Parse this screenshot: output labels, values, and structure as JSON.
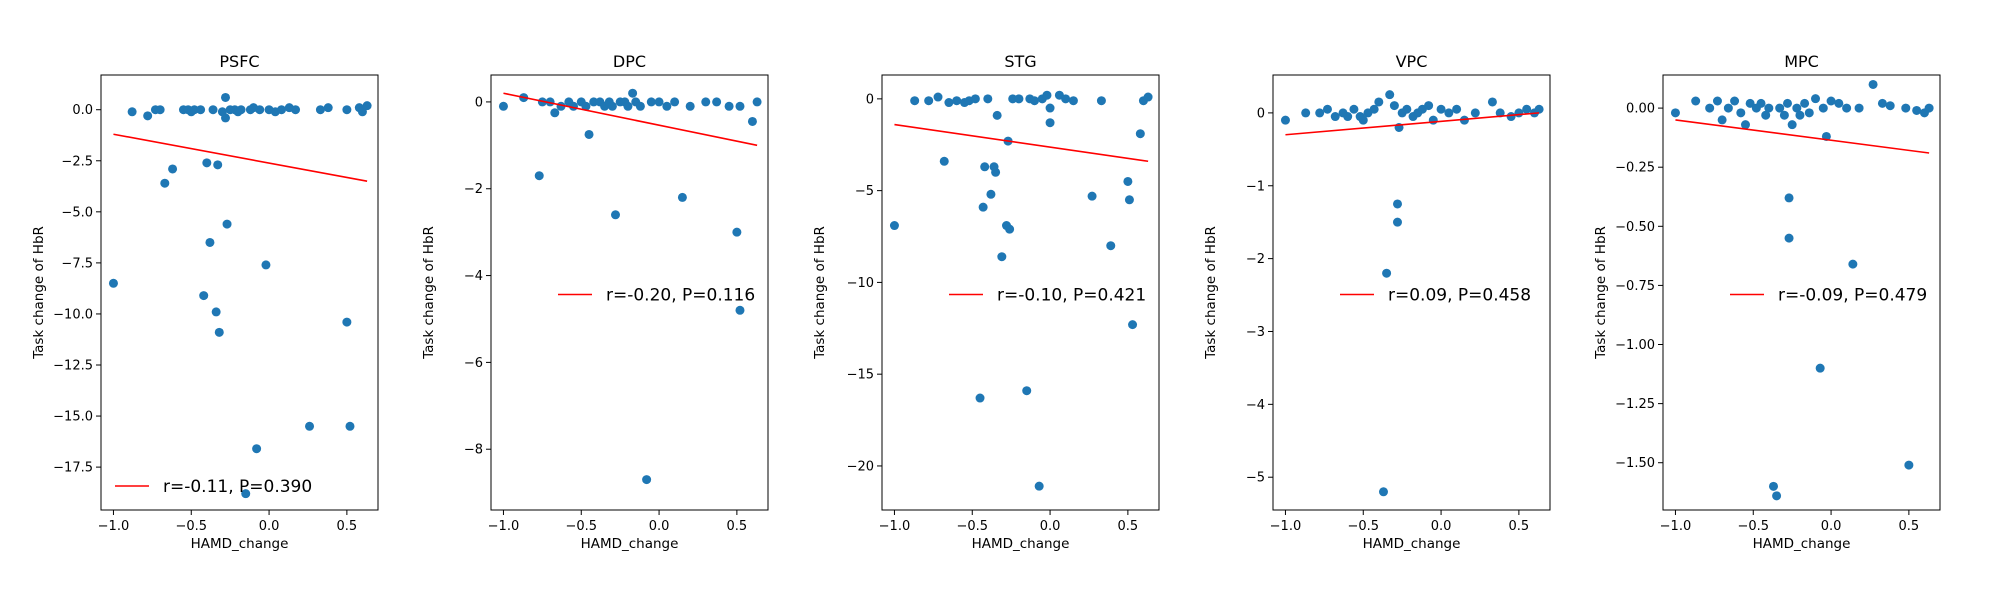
{
  "chart_data": [
    {
      "type": "scatter",
      "title": "PSFC",
      "xlabel": "HAMD_change",
      "ylabel": "Task change of HbR",
      "xlim": [
        -1.08,
        0.7
      ],
      "ylim": [
        -19.6,
        1.7
      ],
      "xticks": [
        {
          "v": -1.0,
          "label": "−1.0"
        },
        {
          "v": -0.5,
          "label": "−0.5"
        },
        {
          "v": 0.0,
          "label": "0.0"
        },
        {
          "v": 0.5,
          "label": "0.5"
        }
      ],
      "yticks": [
        {
          "v": 0.0,
          "label": "0.0"
        },
        {
          "v": -2.5,
          "label": "−2.5"
        },
        {
          "v": -5.0,
          "label": "−5.0"
        },
        {
          "v": -7.5,
          "label": "−7.5"
        },
        {
          "v": -10.0,
          "label": "−10.0"
        },
        {
          "v": -12.5,
          "label": "−12.5"
        },
        {
          "v": -15.0,
          "label": "−15.0"
        },
        {
          "v": -17.5,
          "label": "−17.5"
        }
      ],
      "legend": {
        "label": "r=-0.11, P=0.390",
        "position": "lower left",
        "color": "#ff0000"
      },
      "grid": false,
      "marker_color": "#1f77b4",
      "fit": {
        "x": [
          -1.0,
          0.63
        ],
        "y": [
          -1.2,
          -3.5
        ]
      },
      "points": [
        {
          "x": -1.0,
          "y": -8.5
        },
        {
          "x": -0.88,
          "y": -0.1
        },
        {
          "x": -0.78,
          "y": -0.3
        },
        {
          "x": -0.73,
          "y": 0.0
        },
        {
          "x": -0.7,
          "y": 0.0
        },
        {
          "x": -0.67,
          "y": -3.6
        },
        {
          "x": -0.62,
          "y": -2.9
        },
        {
          "x": -0.55,
          "y": 0.0
        },
        {
          "x": -0.52,
          "y": 0.0
        },
        {
          "x": -0.5,
          "y": -0.1
        },
        {
          "x": -0.48,
          "y": 0.0
        },
        {
          "x": -0.44,
          "y": 0.0
        },
        {
          "x": -0.42,
          "y": -9.1
        },
        {
          "x": -0.4,
          "y": -2.6
        },
        {
          "x": -0.38,
          "y": -6.5
        },
        {
          "x": -0.36,
          "y": 0.0
        },
        {
          "x": -0.34,
          "y": -9.9
        },
        {
          "x": -0.33,
          "y": -2.7
        },
        {
          "x": -0.32,
          "y": -10.9
        },
        {
          "x": -0.3,
          "y": -0.1
        },
        {
          "x": -0.28,
          "y": 0.6
        },
        {
          "x": -0.27,
          "y": -5.6
        },
        {
          "x": -0.25,
          "y": 0.0
        },
        {
          "x": -0.22,
          "y": 0.0
        },
        {
          "x": -0.2,
          "y": -0.1
        },
        {
          "x": -0.18,
          "y": 0.0
        },
        {
          "x": -0.15,
          "y": -18.8
        },
        {
          "x": -0.12,
          "y": 0.0
        },
        {
          "x": -0.1,
          "y": 0.1
        },
        {
          "x": -0.08,
          "y": -16.6
        },
        {
          "x": -0.06,
          "y": 0.0
        },
        {
          "x": -0.02,
          "y": -7.6
        },
        {
          "x": 0.0,
          "y": 0.0
        },
        {
          "x": 0.04,
          "y": -0.1
        },
        {
          "x": 0.08,
          "y": 0.0
        },
        {
          "x": 0.13,
          "y": 0.1
        },
        {
          "x": 0.17,
          "y": 0.0
        },
        {
          "x": 0.26,
          "y": -15.5
        },
        {
          "x": 0.33,
          "y": 0.0
        },
        {
          "x": 0.38,
          "y": 0.1
        },
        {
          "x": 0.5,
          "y": -10.4
        },
        {
          "x": 0.52,
          "y": -15.5
        },
        {
          "x": 0.5,
          "y": 0.0
        },
        {
          "x": 0.58,
          "y": 0.1
        },
        {
          "x": 0.6,
          "y": -0.1
        },
        {
          "x": 0.63,
          "y": 0.2
        },
        {
          "x": -0.28,
          "y": -0.4
        }
      ]
    },
    {
      "type": "scatter",
      "title": "DPC",
      "xlabel": "HAMD_change",
      "ylabel": "Task change of HbR",
      "xlim": [
        -1.08,
        0.7
      ],
      "ylim": [
        -9.4,
        0.62
      ],
      "xticks": [
        {
          "v": -1.0,
          "label": "−1.0"
        },
        {
          "v": -0.5,
          "label": "−0.5"
        },
        {
          "v": 0.0,
          "label": "0.0"
        },
        {
          "v": 0.5,
          "label": "0.5"
        }
      ],
      "yticks": [
        {
          "v": 0,
          "label": "0"
        },
        {
          "v": -2,
          "label": "−2"
        },
        {
          "v": -4,
          "label": "−4"
        },
        {
          "v": -6,
          "label": "−6"
        },
        {
          "v": -8,
          "label": "−8"
        }
      ],
      "legend": {
        "label": "r=-0.20, P=0.116",
        "position": "center right",
        "color": "#ff0000"
      },
      "grid": false,
      "marker_color": "#1f77b4",
      "fit": {
        "x": [
          -1.0,
          0.63
        ],
        "y": [
          0.2,
          -1.0
        ]
      },
      "points": [
        {
          "x": -1.0,
          "y": -0.1
        },
        {
          "x": -0.87,
          "y": 0.1
        },
        {
          "x": -0.77,
          "y": -1.7
        },
        {
          "x": -0.75,
          "y": 0.0
        },
        {
          "x": -0.7,
          "y": 0.0
        },
        {
          "x": -0.67,
          "y": -0.25
        },
        {
          "x": -0.63,
          "y": -0.1
        },
        {
          "x": -0.58,
          "y": 0.0
        },
        {
          "x": -0.55,
          "y": -0.1
        },
        {
          "x": -0.5,
          "y": 0.0
        },
        {
          "x": -0.47,
          "y": -0.1
        },
        {
          "x": -0.45,
          "y": -0.75
        },
        {
          "x": -0.42,
          "y": 0.0
        },
        {
          "x": -0.38,
          "y": 0.0
        },
        {
          "x": -0.35,
          "y": -0.1
        },
        {
          "x": -0.32,
          "y": 0.0
        },
        {
          "x": -0.3,
          "y": -0.1
        },
        {
          "x": -0.28,
          "y": -2.6
        },
        {
          "x": -0.25,
          "y": 0.0
        },
        {
          "x": -0.22,
          "y": 0.0
        },
        {
          "x": -0.2,
          "y": -0.1
        },
        {
          "x": -0.17,
          "y": 0.2
        },
        {
          "x": -0.15,
          "y": 0.0
        },
        {
          "x": -0.12,
          "y": -0.1
        },
        {
          "x": -0.08,
          "y": -8.7
        },
        {
          "x": -0.05,
          "y": 0.0
        },
        {
          "x": 0.0,
          "y": 0.0
        },
        {
          "x": 0.05,
          "y": -0.1
        },
        {
          "x": 0.1,
          "y": 0.0
        },
        {
          "x": 0.15,
          "y": -2.2
        },
        {
          "x": 0.2,
          "y": -0.1
        },
        {
          "x": 0.3,
          "y": 0.0
        },
        {
          "x": 0.37,
          "y": 0.0
        },
        {
          "x": 0.45,
          "y": -0.1
        },
        {
          "x": 0.5,
          "y": -3.0
        },
        {
          "x": 0.52,
          "y": -4.8
        },
        {
          "x": 0.52,
          "y": -0.1
        },
        {
          "x": 0.6,
          "y": -0.45
        },
        {
          "x": 0.63,
          "y": 0.0
        }
      ]
    },
    {
      "type": "scatter",
      "title": "STG",
      "xlabel": "HAMD_change",
      "ylabel": "Task change of HbR",
      "xlim": [
        -1.08,
        0.7
      ],
      "ylim": [
        -22.4,
        1.3
      ],
      "xticks": [
        {
          "v": -1.0,
          "label": "−1.0"
        },
        {
          "v": -0.5,
          "label": "−0.5"
        },
        {
          "v": 0.0,
          "label": "0.0"
        },
        {
          "v": 0.5,
          "label": "0.5"
        }
      ],
      "yticks": [
        {
          "v": 0,
          "label": "0"
        },
        {
          "v": -5,
          "label": "−5"
        },
        {
          "v": -10,
          "label": "−10"
        },
        {
          "v": -15,
          "label": "−15"
        },
        {
          "v": -20,
          "label": "−20"
        }
      ],
      "legend": {
        "label": "r=-0.10, P=0.421",
        "position": "center right",
        "color": "#ff0000"
      },
      "grid": false,
      "marker_color": "#1f77b4",
      "fit": {
        "x": [
          -1.0,
          0.63
        ],
        "y": [
          -1.4,
          -3.4
        ]
      },
      "points": [
        {
          "x": -1.0,
          "y": -6.9
        },
        {
          "x": -0.87,
          "y": -0.1
        },
        {
          "x": -0.78,
          "y": -0.1
        },
        {
          "x": -0.72,
          "y": 0.1
        },
        {
          "x": -0.68,
          "y": -3.4
        },
        {
          "x": -0.65,
          "y": -0.2
        },
        {
          "x": -0.6,
          "y": -0.1
        },
        {
          "x": -0.55,
          "y": -0.2
        },
        {
          "x": -0.52,
          "y": -0.1
        },
        {
          "x": -0.48,
          "y": 0.0
        },
        {
          "x": -0.45,
          "y": -16.3
        },
        {
          "x": -0.43,
          "y": -5.9
        },
        {
          "x": -0.42,
          "y": -3.7
        },
        {
          "x": -0.4,
          "y": 0.0
        },
        {
          "x": -0.38,
          "y": -5.2
        },
        {
          "x": -0.36,
          "y": -3.7
        },
        {
          "x": -0.35,
          "y": -4.0
        },
        {
          "x": -0.34,
          "y": -0.9
        },
        {
          "x": -0.31,
          "y": -8.6
        },
        {
          "x": -0.28,
          "y": -6.9
        },
        {
          "x": -0.27,
          "y": -2.3
        },
        {
          "x": -0.26,
          "y": -7.1
        },
        {
          "x": -0.24,
          "y": 0.0
        },
        {
          "x": -0.2,
          "y": 0.0
        },
        {
          "x": -0.15,
          "y": -15.9
        },
        {
          "x": -0.13,
          "y": 0.0
        },
        {
          "x": -0.1,
          "y": -0.1
        },
        {
          "x": -0.07,
          "y": -21.1
        },
        {
          "x": -0.05,
          "y": 0.0
        },
        {
          "x": -0.02,
          "y": 0.2
        },
        {
          "x": 0.0,
          "y": -1.3
        },
        {
          "x": 0.0,
          "y": -0.5
        },
        {
          "x": 0.06,
          "y": 0.2
        },
        {
          "x": 0.1,
          "y": 0.0
        },
        {
          "x": 0.15,
          "y": -0.1
        },
        {
          "x": 0.27,
          "y": -5.3
        },
        {
          "x": 0.33,
          "y": -0.1
        },
        {
          "x": 0.39,
          "y": -8.0
        },
        {
          "x": 0.5,
          "y": -4.5
        },
        {
          "x": 0.51,
          "y": -5.5
        },
        {
          "x": 0.53,
          "y": -12.3
        },
        {
          "x": 0.58,
          "y": -1.9
        },
        {
          "x": 0.6,
          "y": -0.1
        },
        {
          "x": 0.63,
          "y": 0.1
        }
      ]
    },
    {
      "type": "scatter",
      "title": "VPC",
      "xlabel": "HAMD_change",
      "ylabel": "Task change of HbR",
      "xlim": [
        -1.08,
        0.7
      ],
      "ylim": [
        -5.45,
        0.52
      ],
      "xticks": [
        {
          "v": -1.0,
          "label": "−1.0"
        },
        {
          "v": -0.5,
          "label": "−0.5"
        },
        {
          "v": 0.0,
          "label": "0.0"
        },
        {
          "v": 0.5,
          "label": "0.5"
        }
      ],
      "yticks": [
        {
          "v": 0,
          "label": "0"
        },
        {
          "v": -1,
          "label": "−1"
        },
        {
          "v": -2,
          "label": "−2"
        },
        {
          "v": -3,
          "label": "−3"
        },
        {
          "v": -4,
          "label": "−4"
        },
        {
          "v": -5,
          "label": "−5"
        }
      ],
      "legend": {
        "label": "r=0.09, P=0.458",
        "position": "center right",
        "color": "#ff0000"
      },
      "grid": false,
      "marker_color": "#1f77b4",
      "fit": {
        "x": [
          -1.0,
          0.63
        ],
        "y": [
          -0.3,
          0.0
        ]
      },
      "points": [
        {
          "x": -1.0,
          "y": -0.1
        },
        {
          "x": -0.87,
          "y": 0.0
        },
        {
          "x": -0.78,
          "y": 0.0
        },
        {
          "x": -0.73,
          "y": 0.05
        },
        {
          "x": -0.68,
          "y": -0.05
        },
        {
          "x": -0.63,
          "y": 0.0
        },
        {
          "x": -0.6,
          "y": -0.05
        },
        {
          "x": -0.56,
          "y": 0.05
        },
        {
          "x": -0.52,
          "y": -0.05
        },
        {
          "x": -0.5,
          "y": -0.1
        },
        {
          "x": -0.47,
          "y": 0.0
        },
        {
          "x": -0.43,
          "y": 0.05
        },
        {
          "x": -0.4,
          "y": 0.15
        },
        {
          "x": -0.37,
          "y": -5.2
        },
        {
          "x": -0.35,
          "y": -2.2
        },
        {
          "x": -0.33,
          "y": 0.25
        },
        {
          "x": -0.3,
          "y": 0.1
        },
        {
          "x": -0.28,
          "y": -1.25
        },
        {
          "x": -0.28,
          "y": -1.5
        },
        {
          "x": -0.27,
          "y": -0.2
        },
        {
          "x": -0.25,
          "y": 0.0
        },
        {
          "x": -0.22,
          "y": 0.05
        },
        {
          "x": -0.18,
          "y": -0.05
        },
        {
          "x": -0.15,
          "y": 0.0
        },
        {
          "x": -0.12,
          "y": 0.05
        },
        {
          "x": -0.08,
          "y": 0.1
        },
        {
          "x": -0.05,
          "y": -0.1
        },
        {
          "x": 0.0,
          "y": 0.05
        },
        {
          "x": 0.05,
          "y": 0.0
        },
        {
          "x": 0.1,
          "y": 0.05
        },
        {
          "x": 0.15,
          "y": -0.1
        },
        {
          "x": 0.22,
          "y": 0.0
        },
        {
          "x": 0.33,
          "y": 0.15
        },
        {
          "x": 0.38,
          "y": 0.0
        },
        {
          "x": 0.45,
          "y": -0.05
        },
        {
          "x": 0.5,
          "y": 0.0
        },
        {
          "x": 0.55,
          "y": 0.05
        },
        {
          "x": 0.6,
          "y": 0.0
        },
        {
          "x": 0.63,
          "y": 0.05
        }
      ]
    },
    {
      "type": "scatter",
      "title": "MPC",
      "xlabel": "HAMD_change",
      "ylabel": "Task change of HbR",
      "xlim": [
        -1.08,
        0.7
      ],
      "ylim": [
        -1.7,
        0.14
      ],
      "xticks": [
        {
          "v": -1.0,
          "label": "−1.0"
        },
        {
          "v": -0.5,
          "label": "−0.5"
        },
        {
          "v": 0.0,
          "label": "0.0"
        },
        {
          "v": 0.5,
          "label": "0.5"
        }
      ],
      "yticks": [
        {
          "v": 0.0,
          "label": "0.00"
        },
        {
          "v": -0.25,
          "label": "−0.25"
        },
        {
          "v": -0.5,
          "label": "−0.50"
        },
        {
          "v": -0.75,
          "label": "−0.75"
        },
        {
          "v": -1.0,
          "label": "−1.00"
        },
        {
          "v": -1.25,
          "label": "−1.25"
        },
        {
          "v": -1.5,
          "label": "−1.50"
        }
      ],
      "legend": {
        "label": "r=-0.09, P=0.479",
        "position": "center right",
        "color": "#ff0000"
      },
      "grid": false,
      "marker_color": "#1f77b4",
      "fit": {
        "x": [
          -1.0,
          0.63
        ],
        "y": [
          -0.05,
          -0.19
        ]
      },
      "points": [
        {
          "x": -1.0,
          "y": -0.02
        },
        {
          "x": -0.87,
          "y": 0.03
        },
        {
          "x": -0.78,
          "y": 0.0
        },
        {
          "x": -0.73,
          "y": 0.03
        },
        {
          "x": -0.7,
          "y": -0.05
        },
        {
          "x": -0.66,
          "y": 0.0
        },
        {
          "x": -0.62,
          "y": 0.03
        },
        {
          "x": -0.58,
          "y": -0.02
        },
        {
          "x": -0.55,
          "y": -0.07
        },
        {
          "x": -0.52,
          "y": 0.02
        },
        {
          "x": -0.48,
          "y": 0.0
        },
        {
          "x": -0.45,
          "y": 0.02
        },
        {
          "x": -0.42,
          "y": -0.03
        },
        {
          "x": -0.4,
          "y": 0.0
        },
        {
          "x": -0.37,
          "y": -1.6
        },
        {
          "x": -0.35,
          "y": -1.64
        },
        {
          "x": -0.33,
          "y": 0.0
        },
        {
          "x": -0.3,
          "y": -0.03
        },
        {
          "x": -0.28,
          "y": 0.02
        },
        {
          "x": -0.27,
          "y": -0.38
        },
        {
          "x": -0.27,
          "y": -0.55
        },
        {
          "x": -0.25,
          "y": -0.07
        },
        {
          "x": -0.22,
          "y": 0.0
        },
        {
          "x": -0.2,
          "y": -0.03
        },
        {
          "x": -0.17,
          "y": 0.02
        },
        {
          "x": -0.14,
          "y": -0.02
        },
        {
          "x": -0.1,
          "y": 0.04
        },
        {
          "x": -0.07,
          "y": -1.1
        },
        {
          "x": -0.05,
          "y": 0.0
        },
        {
          "x": -0.03,
          "y": -0.12
        },
        {
          "x": 0.0,
          "y": 0.03
        },
        {
          "x": 0.05,
          "y": 0.02
        },
        {
          "x": 0.1,
          "y": 0.0
        },
        {
          "x": 0.14,
          "y": -0.66
        },
        {
          "x": 0.18,
          "y": 0.0
        },
        {
          "x": 0.27,
          "y": 0.1
        },
        {
          "x": 0.33,
          "y": 0.02
        },
        {
          "x": 0.38,
          "y": 0.01
        },
        {
          "x": 0.48,
          "y": 0.0
        },
        {
          "x": 0.5,
          "y": -1.51
        },
        {
          "x": 0.55,
          "y": -0.01
        },
        {
          "x": 0.6,
          "y": -0.02
        },
        {
          "x": 0.63,
          "y": 0.0
        }
      ]
    }
  ]
}
